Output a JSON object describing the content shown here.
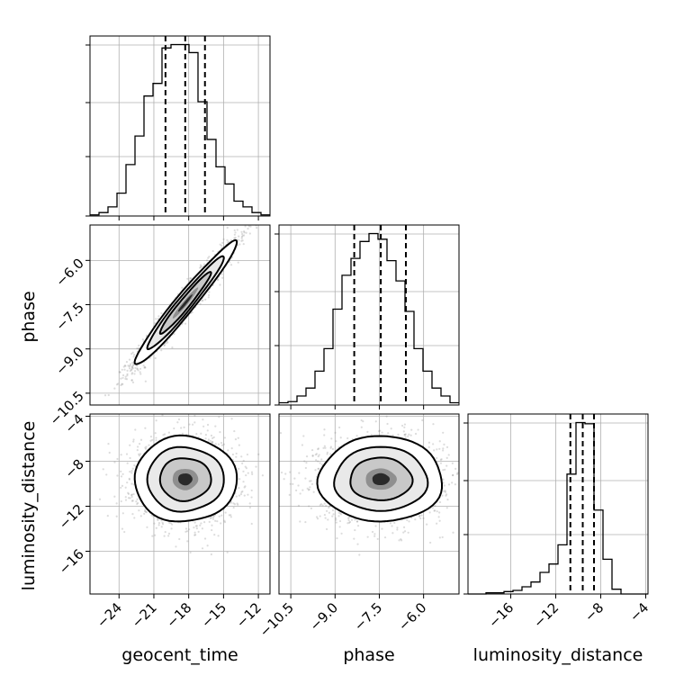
{
  "chart_data": {
    "type": "corner",
    "parameters": [
      "geocent_time",
      "phase",
      "luminosity_distance"
    ],
    "axis_labels": {
      "geocent_time": "geocent_time",
      "phase": "phase",
      "luminosity_distance": "luminosity_distance"
    },
    "ranges": {
      "geocent_time": [
        -26.5,
        -11.0
      ],
      "phase": [
        -10.9,
        -4.8
      ],
      "luminosity_distance": [
        -19.8,
        -3.8
      ]
    },
    "ticks": {
      "geocent_time": [
        -24,
        -21,
        -18,
        -15,
        -12
      ],
      "phase": [
        -10.5,
        -9.0,
        -7.5,
        -6.0
      ],
      "luminosity_distance": [
        -16,
        -12,
        -8,
        -4
      ]
    },
    "tick_labels": {
      "geocent_time": [
        "−24",
        "−21",
        "−18",
        "−15",
        "−12"
      ],
      "phase": [
        "−10.5",
        "−9.0",
        "−7.5",
        "−6.0"
      ],
      "luminosity_distance": [
        "−16",
        "−12",
        "−8",
        "−4"
      ]
    },
    "grid": true,
    "histograms": {
      "geocent_time": {
        "bin_edges": [
          -26.5,
          -25.725,
          -24.95,
          -24.175,
          -23.4,
          -22.625,
          -21.85,
          -21.075,
          -20.3,
          -19.525,
          -18.75,
          -17.975,
          -17.2,
          -16.425,
          -15.65,
          -14.875,
          -14.1,
          -13.325,
          -12.55,
          -11.775,
          -11.0
        ],
        "counts": [
          1,
          3,
          8,
          20,
          45,
          70,
          105,
          116,
          147,
          150,
          150,
          143,
          100,
          67,
          43,
          28,
          13,
          8,
          3,
          1
        ],
        "quantiles": [
          -20.0,
          -18.3,
          -16.6
        ]
      },
      "phase": {
        "bin_edges": [
          -10.9,
          -10.595,
          -10.29,
          -9.985,
          -9.68,
          -9.375,
          -9.07,
          -8.765,
          -8.46,
          -8.155,
          -7.85,
          -7.545,
          -7.24,
          -6.935,
          -6.63,
          -6.325,
          -6.02,
          -5.715,
          -5.41,
          -5.105,
          -4.8
        ],
        "counts": [
          2,
          3,
          8,
          15,
          30,
          50,
          85,
          115,
          130,
          145,
          152,
          147,
          128,
          110,
          83,
          50,
          30,
          15,
          8,
          2
        ],
        "quantiles": [
          -8.35,
          -7.45,
          -6.6
        ]
      },
      "luminosity_distance": {
        "bin_edges": [
          -19.8,
          -19.0,
          -18.2,
          -17.4,
          -16.6,
          -15.8,
          -15.0,
          -14.2,
          -13.4,
          -12.6,
          -11.8,
          -11.0,
          -10.2,
          -9.4,
          -8.6,
          -7.8,
          -7.0,
          -6.2,
          -5.4,
          -4.6,
          -3.8
        ],
        "counts": [
          0,
          0,
          1,
          1,
          2,
          3,
          6,
          10,
          18,
          25,
          41,
          100,
          143,
          142,
          70,
          29,
          4,
          0,
          0,
          0
        ],
        "quantiles": [
          -10.7,
          -9.6,
          -8.6
        ]
      }
    },
    "joint": {
      "phase_vs_geocent_time": {
        "mean": [
          -18.3,
          -7.45
        ],
        "std": [
          2.2,
          1.05
        ],
        "correlation": 0.97
      },
      "luminosity_distance_vs_geocent_time": {
        "mean": [
          -18.3,
          -9.6
        ],
        "std": [
          2.2,
          1.9
        ],
        "correlation": 0.0
      },
      "luminosity_distance_vs_phase": {
        "mean": [
          -7.45,
          -9.6
        ],
        "std": [
          1.05,
          1.9
        ],
        "correlation": 0.0
      }
    },
    "contour_levels_sigma": [
      0.5,
      1.0,
      1.5,
      2.0
    ]
  }
}
